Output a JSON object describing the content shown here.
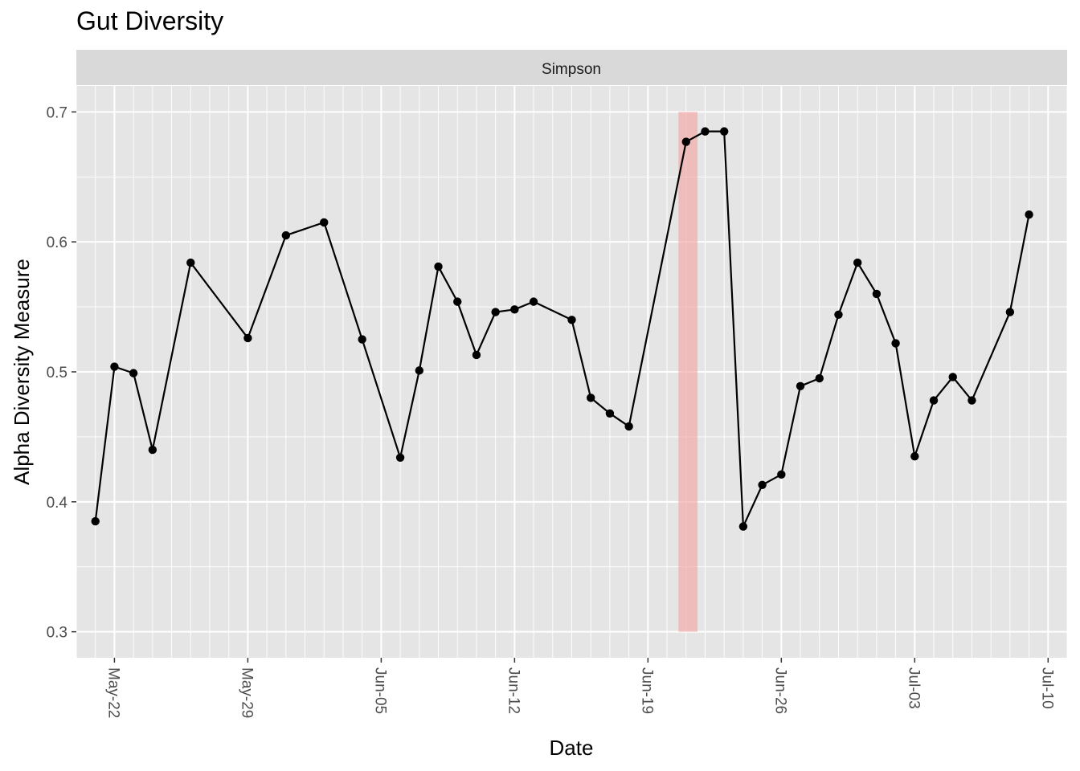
{
  "chart_data": {
    "type": "line",
    "title": "Gut Diversity",
    "facet_label": "Simpson",
    "xlabel": "Date",
    "ylabel": "Alpha Diversity Measure",
    "ylim": [
      0.28,
      0.72
    ],
    "y_ticks": [
      0.3,
      0.4,
      0.5,
      0.6,
      0.7
    ],
    "y_tick_labels": [
      "0.3",
      "0.4",
      "0.5",
      "0.6",
      "0.7"
    ],
    "x_ticks": [
      "2018-05-22",
      "2018-05-29",
      "2018-06-05",
      "2018-06-12",
      "2018-06-19",
      "2018-06-26",
      "2018-07-03",
      "2018-07-10"
    ],
    "x_tick_labels": [
      "May-22",
      "May-29",
      "Jun-05",
      "Jun-12",
      "Jun-19",
      "Jun-26",
      "Jul-03",
      "Jul-10"
    ],
    "xlim": [
      "2018-05-20",
      "2018-07-11"
    ],
    "grid": true,
    "highlight": {
      "x_start": "2018-06-20.6",
      "x_end": "2018-06-21.6",
      "y_start": 0.3,
      "y_end": 0.7,
      "color": "#f4a6a6"
    },
    "colors": {
      "panel": "#e5e5e5",
      "grid": "#ffffff",
      "strip": "#d9d9d9",
      "line": "#000000"
    },
    "series": [
      {
        "x": [
          "2018-05-21",
          "2018-05-22",
          "2018-05-23",
          "2018-05-24",
          "2018-05-26",
          "2018-05-29",
          "2018-05-31",
          "2018-06-02",
          "2018-06-04",
          "2018-06-06",
          "2018-06-07",
          "2018-06-08",
          "2018-06-09",
          "2018-06-10",
          "2018-06-11",
          "2018-06-12",
          "2018-06-13",
          "2018-06-15",
          "2018-06-16",
          "2018-06-17",
          "2018-06-18",
          "2018-06-21",
          "2018-06-22",
          "2018-06-23",
          "2018-06-24",
          "2018-06-25",
          "2018-06-26",
          "2018-06-27",
          "2018-06-28",
          "2018-06-29",
          "2018-06-30",
          "2018-07-01",
          "2018-07-02",
          "2018-07-03",
          "2018-07-04",
          "2018-07-05",
          "2018-07-06",
          "2018-07-08",
          "2018-07-09"
        ],
        "values": [
          0.385,
          0.504,
          0.499,
          0.44,
          0.584,
          0.526,
          0.605,
          0.615,
          0.525,
          0.434,
          0.501,
          0.581,
          0.554,
          0.513,
          0.546,
          0.548,
          0.554,
          0.54,
          0.48,
          0.468,
          0.458,
          0.677,
          0.685,
          0.685,
          0.381,
          0.413,
          0.421,
          0.489,
          0.495,
          0.544,
          0.584,
          0.56,
          0.522,
          0.435,
          0.478,
          0.496,
          0.478,
          0.546,
          0.621
        ]
      }
    ]
  }
}
